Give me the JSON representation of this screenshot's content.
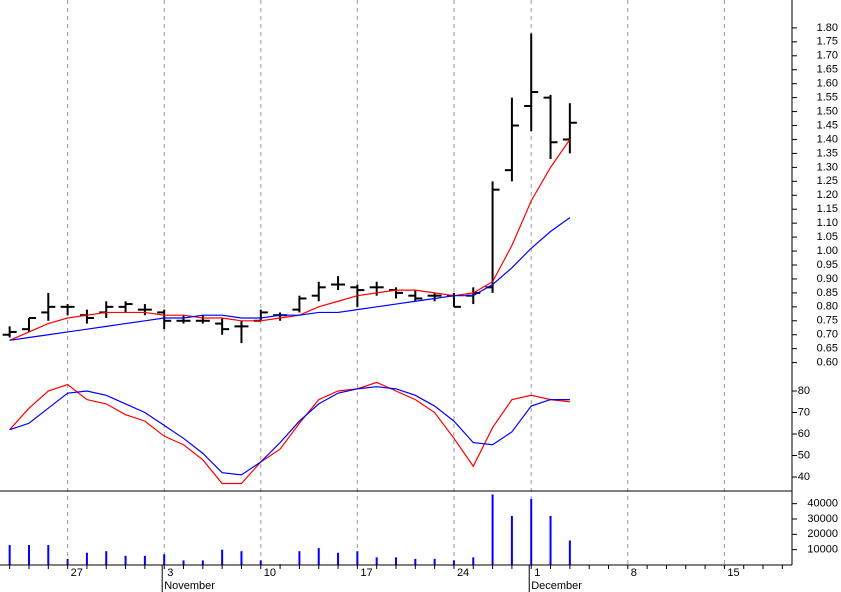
{
  "chart_data": [
    {
      "type": "ohlc",
      "ylim": [
        0.57,
        1.9
      ],
      "yticks": [
        {
          "value": 0.6,
          "label": "0.60"
        },
        {
          "value": 0.65,
          "label": "0.65"
        },
        {
          "value": 0.7,
          "label": "0.70"
        },
        {
          "value": 0.75,
          "label": "0.75"
        },
        {
          "value": 0.8,
          "label": "0.80"
        },
        {
          "value": 0.85,
          "label": "0.85"
        },
        {
          "value": 0.9,
          "label": "0.90"
        },
        {
          "value": 0.95,
          "label": "0.95"
        },
        {
          "value": 1.0,
          "label": "1.00"
        },
        {
          "value": 1.05,
          "label": "1.05"
        },
        {
          "value": 1.1,
          "label": "1.10"
        },
        {
          "value": 1.15,
          "label": "1.15"
        },
        {
          "value": 1.2,
          "label": "1.20"
        },
        {
          "value": 1.25,
          "label": "1.25"
        },
        {
          "value": 1.3,
          "label": "1.30"
        },
        {
          "value": 1.35,
          "label": "1.35"
        },
        {
          "value": 1.4,
          "label": "1.40"
        },
        {
          "value": 1.45,
          "label": "1.45"
        },
        {
          "value": 1.5,
          "label": "1.50"
        },
        {
          "value": 1.55,
          "label": "1.55"
        },
        {
          "value": 1.6,
          "label": "1.60"
        },
        {
          "value": 1.65,
          "label": "1.65"
        },
        {
          "value": 1.7,
          "label": "1.70"
        },
        {
          "value": 1.75,
          "label": "1.75"
        },
        {
          "value": 1.8,
          "label": "1.80"
        }
      ],
      "color": "#000000",
      "open": [
        0.7,
        0.72,
        0.78,
        0.8,
        0.77,
        0.78,
        0.8,
        0.79,
        0.78,
        0.75,
        0.75,
        0.74,
        0.73,
        0.75,
        0.77,
        0.79,
        0.84,
        0.88,
        0.87,
        0.87,
        0.86,
        0.84,
        0.84,
        0.84,
        0.84,
        0.87,
        1.29,
        1.52,
        1.55,
        1.4,
        null,
        null,
        null,
        null,
        null,
        null,
        null,
        null,
        null,
        null,
        null
      ],
      "high": [
        0.73,
        0.76,
        0.85,
        0.81,
        0.79,
        0.82,
        0.82,
        0.81,
        0.79,
        0.77,
        0.77,
        0.76,
        0.75,
        0.79,
        0.78,
        0.84,
        0.89,
        0.91,
        0.88,
        0.89,
        0.87,
        0.86,
        0.85,
        0.85,
        0.87,
        1.25,
        1.55,
        1.78,
        1.56,
        1.53,
        null,
        null,
        null,
        null,
        null,
        null,
        null,
        null,
        null,
        null,
        null
      ],
      "low": [
        0.69,
        0.71,
        0.75,
        0.77,
        0.74,
        0.76,
        0.78,
        0.77,
        0.72,
        0.74,
        0.74,
        0.7,
        0.67,
        0.75,
        0.75,
        0.78,
        0.82,
        0.86,
        0.8,
        0.84,
        0.83,
        0.82,
        0.82,
        0.8,
        0.81,
        0.85,
        1.25,
        1.43,
        1.33,
        1.35,
        null,
        null,
        null,
        null,
        null,
        null,
        null,
        null,
        null,
        null,
        null
      ],
      "close": [
        0.71,
        0.76,
        0.8,
        0.8,
        0.76,
        0.8,
        0.81,
        0.79,
        0.75,
        0.75,
        0.75,
        0.72,
        0.73,
        0.78,
        0.77,
        0.83,
        0.87,
        0.88,
        0.86,
        0.87,
        0.85,
        0.83,
        0.84,
        0.8,
        0.85,
        1.22,
        1.45,
        1.57,
        1.39,
        1.46,
        null,
        null,
        null,
        null,
        null,
        null,
        null,
        null,
        null,
        null,
        null
      ],
      "lines": [
        {
          "color": "#ff0000",
          "values": [
            0.68,
            0.71,
            0.74,
            0.76,
            0.77,
            0.78,
            0.78,
            0.78,
            0.77,
            0.77,
            0.76,
            0.76,
            0.75,
            0.75,
            0.76,
            0.77,
            0.8,
            0.82,
            0.84,
            0.85,
            0.86,
            0.86,
            0.85,
            0.84,
            0.85,
            0.89,
            1.02,
            1.18,
            1.3,
            1.4,
            null,
            null,
            null,
            null,
            null,
            null,
            null,
            null,
            null,
            null,
            null
          ]
        },
        {
          "color": "#0000ff",
          "values": [
            0.68,
            0.69,
            0.7,
            0.71,
            0.72,
            0.73,
            0.74,
            0.75,
            0.76,
            0.76,
            0.77,
            0.77,
            0.76,
            0.76,
            0.77,
            0.77,
            0.78,
            0.78,
            0.79,
            0.8,
            0.81,
            0.82,
            0.83,
            0.84,
            0.84,
            0.88,
            0.94,
            1.01,
            1.07,
            1.12,
            null,
            null,
            null,
            null,
            null,
            null,
            null,
            null,
            null,
            null,
            null
          ]
        }
      ]
    },
    {
      "type": "line",
      "ylim": [
        33.5,
        89.3
      ],
      "yticks": [
        40,
        50,
        60,
        70,
        80
      ],
      "series": [
        {
          "color": "#ff0000",
          "values": [
            62,
            72,
            80,
            83,
            76,
            74,
            69,
            66,
            59,
            55,
            48,
            37,
            37,
            47,
            53,
            65,
            76,
            80,
            81,
            84,
            80,
            76,
            70,
            58,
            45,
            63,
            76,
            78,
            76,
            75,
            null,
            null,
            null,
            null,
            null,
            null,
            null,
            null,
            null,
            null,
            null
          ]
        },
        {
          "color": "#0000ff",
          "values": [
            62,
            65,
            72,
            79,
            80,
            78,
            74,
            70,
            64,
            58,
            51,
            42,
            41,
            47,
            56,
            66,
            74,
            79,
            81,
            82,
            81,
            78,
            73,
            66,
            56,
            55,
            61,
            73,
            76,
            76,
            null,
            null,
            null,
            null,
            null,
            null,
            null,
            null,
            null,
            null,
            null
          ]
        }
      ]
    },
    {
      "type": "bar",
      "ylim": [
        0,
        47600
      ],
      "yticks": [
        10000,
        20000,
        30000,
        40000
      ],
      "color": "#0000ff",
      "values": [
        13000,
        13000,
        13000,
        4000,
        8000,
        9000,
        6000,
        6000,
        7000,
        3000,
        3000,
        10000,
        9000,
        3000,
        500,
        9000,
        11000,
        8000,
        9000,
        5000,
        5000,
        4000,
        4000,
        3000,
        5000,
        46000,
        32000,
        43000,
        32000,
        16000,
        null,
        null,
        null,
        null,
        null,
        null,
        null,
        null,
        null,
        null,
        null
      ],
      "categories": [
        null,
        null,
        null,
        "27",
        null,
        null,
        null,
        null,
        "3",
        null,
        null,
        null,
        null,
        "10",
        null,
        null,
        null,
        null,
        "17",
        null,
        null,
        null,
        null,
        "24",
        null,
        null,
        null,
        "1",
        null,
        null,
        null,
        null,
        "8",
        null,
        null,
        null,
        null,
        "15",
        null,
        null,
        null
      ],
      "months": [
        null,
        null,
        null,
        null,
        null,
        null,
        null,
        null,
        "November",
        null,
        null,
        null,
        null,
        null,
        null,
        null,
        null,
        null,
        null,
        null,
        null,
        null,
        null,
        null,
        null,
        null,
        null,
        "December",
        null,
        null,
        null,
        null,
        null,
        null,
        null,
        null,
        null,
        null,
        null,
        null,
        null
      ]
    }
  ]
}
